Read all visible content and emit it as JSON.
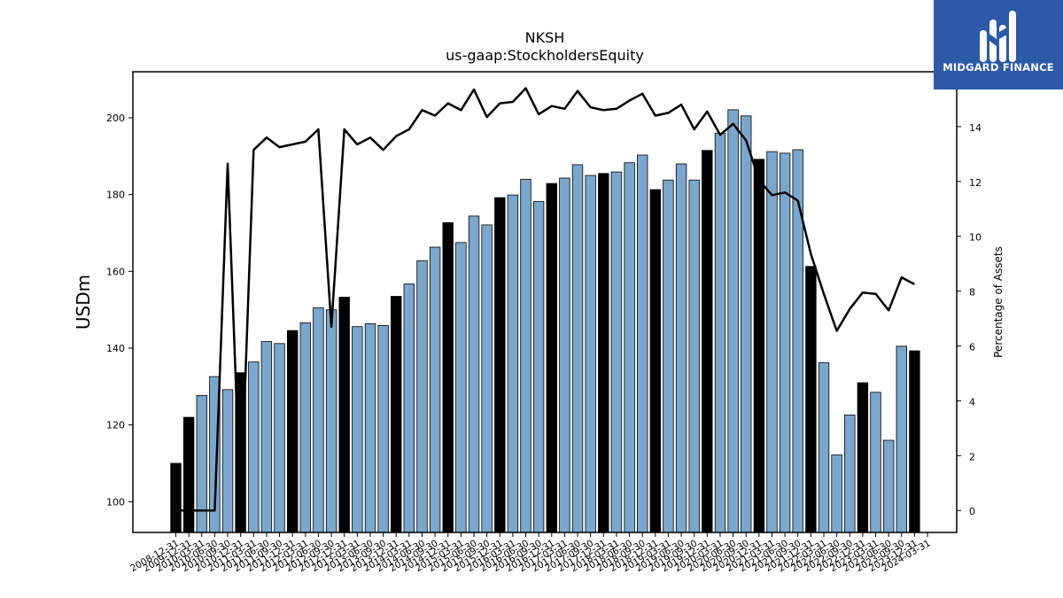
{
  "chart_data": {
    "type": "bar",
    "title": "NKSH",
    "subtitle": "us-gaap:StockholdersEquity",
    "ylabel": "USDm",
    "y2label": "Percentage of Assets",
    "ylim": [
      92,
      212
    ],
    "y2lim": [
      -0.8,
      16.0
    ],
    "yticks": [
      100,
      120,
      140,
      160,
      180,
      200
    ],
    "y2ticks": [
      0,
      2,
      4,
      6,
      8,
      10,
      12,
      14
    ],
    "grid": false,
    "colors": {
      "bar_q4": "#000000",
      "bar_other": "#7ba7cc",
      "edge": "#000000",
      "line": "#000000"
    },
    "categories": [
      "2008-12-31",
      "2009-12-31",
      "2010-03-31",
      "2010-06-30",
      "2010-09-30",
      "2010-12-31",
      "2011-03-31",
      "2011-06-30",
      "2011-09-30",
      "2011-12-31",
      "2012-03-31",
      "2012-06-30",
      "2012-09-30",
      "2012-12-31",
      "2013-03-31",
      "2013-06-30",
      "2013-09-30",
      "2013-12-31",
      "2014-03-31",
      "2014-06-30",
      "2014-09-30",
      "2014-12-31",
      "2015-03-31",
      "2015-06-30",
      "2015-09-30",
      "2015-12-31",
      "2016-03-31",
      "2016-06-30",
      "2016-09-30",
      "2016-12-31",
      "2017-03-31",
      "2017-06-30",
      "2017-09-30",
      "2017-12-31",
      "2018-03-31",
      "2018-06-30",
      "2018-09-30",
      "2018-12-31",
      "2019-03-31",
      "2019-06-30",
      "2019-09-30",
      "2019-12-31",
      "2020-03-31",
      "2020-06-30",
      "2020-09-30",
      "2020-12-31",
      "2021-03-31",
      "2021-06-30",
      "2021-09-30",
      "2021-12-31",
      "2022-03-31",
      "2022-06-30",
      "2022-09-30",
      "2022-12-31",
      "2023-03-31",
      "2023-06-30",
      "2023-09-30",
      "2023-12-31",
      "2024-03-31"
    ],
    "series": [
      {
        "kind": "bar",
        "values": [
          110.0,
          122.0,
          127.7,
          132.6,
          129.2,
          133.6,
          136.4,
          141.7,
          141.2,
          144.6,
          146.6,
          150.5,
          150.0,
          153.3,
          145.6,
          146.4,
          145.9,
          153.5,
          156.7,
          162.8,
          166.3,
          172.7,
          167.5,
          174.4,
          172.1,
          179.2,
          179.9,
          184.0,
          178.2,
          182.9,
          184.3,
          187.8,
          185.0,
          185.5,
          185.9,
          188.3,
          190.3,
          181.3,
          183.8,
          188.0,
          183.8,
          191.5,
          196.0,
          202.1,
          200.5,
          189.2,
          191.2,
          190.8,
          191.7,
          161.3,
          136.2,
          112.2,
          122.6,
          131.0,
          128.5,
          116.0,
          140.5,
          139.3,
          0
        ]
      },
      {
        "kind": "line",
        "values": [
          0.0,
          0.0,
          0.0,
          0.0,
          12.65,
          0.0,
          13.15,
          13.6,
          13.25,
          13.35,
          13.45,
          13.9,
          6.7,
          13.9,
          13.35,
          13.6,
          13.15,
          13.65,
          13.9,
          14.6,
          14.4,
          14.85,
          14.6,
          15.35,
          14.35,
          14.85,
          14.9,
          15.4,
          14.45,
          14.75,
          14.65,
          15.3,
          14.7,
          14.6,
          14.65,
          14.95,
          15.2,
          14.4,
          14.5,
          14.8,
          13.9,
          14.55,
          13.7,
          14.1,
          13.5,
          12.05,
          11.5,
          11.6,
          11.3,
          9.35,
          7.9,
          6.55,
          7.35,
          7.95,
          7.9,
          7.3,
          8.5,
          8.25,
          null
        ]
      }
    ]
  },
  "logo": {
    "text": "MIDGARD FINANCE"
  }
}
